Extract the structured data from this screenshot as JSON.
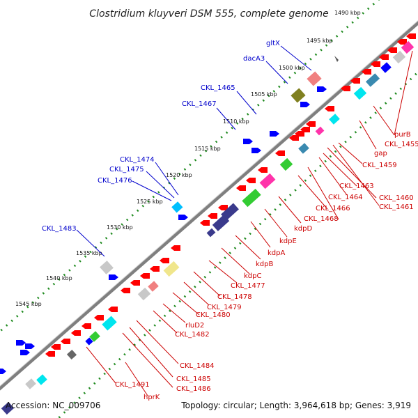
{
  "title": "Clostridium kluyveri DSM 555, complete genome",
  "footer": {
    "accession": "Accession: NC_009706",
    "summary": "Topology: circular; Length: 3,964,618 bp; Genes: 3,919"
  },
  "ticks": [
    {
      "label": "1490 kbp"
    },
    {
      "label": "1495 kbp"
    },
    {
      "label": "1500 kbp"
    },
    {
      "label": "1505 kbp"
    },
    {
      "label": "1510 kbp"
    },
    {
      "label": "1515 kbp"
    },
    {
      "label": "1520 kbp"
    },
    {
      "label": "1525 kbp"
    },
    {
      "label": "1530 kbp"
    },
    {
      "label": "1535 kbp"
    },
    {
      "label": "1540 kbp"
    },
    {
      "label": "1545 kbp"
    }
  ],
  "outer_labels": [
    {
      "label": "gltX"
    },
    {
      "label": "dacA3"
    },
    {
      "label": "CKL_1465"
    },
    {
      "label": "CKL_1467"
    },
    {
      "label": "CKL_1474"
    },
    {
      "label": "CKL_1475"
    },
    {
      "label": "CKL_1476"
    },
    {
      "label": "CKL_1483"
    }
  ],
  "inner_labels": [
    {
      "label": "purB"
    },
    {
      "label": "CKL_1455"
    },
    {
      "label": "gap"
    },
    {
      "label": "CKL_1459"
    },
    {
      "label": "CKL_1463"
    },
    {
      "label": "CKL_1460"
    },
    {
      "label": "CKL_1464"
    },
    {
      "label": "CKL_1461"
    },
    {
      "label": "CKL_1466"
    },
    {
      "label": "CKL_1468"
    },
    {
      "label": "kdpD"
    },
    {
      "label": "kdpE"
    },
    {
      "label": "kdpA"
    },
    {
      "label": "kdpB"
    },
    {
      "label": "kdpC"
    },
    {
      "label": "CKL_1477"
    },
    {
      "label": "CKL_1478"
    },
    {
      "label": "CKL_1479"
    },
    {
      "label": "CKL_1480"
    },
    {
      "label": "rluD2"
    },
    {
      "label": "CKL_1482"
    },
    {
      "label": "CKL_1484"
    },
    {
      "label": "CKL_1485"
    },
    {
      "label": "CKL_1486"
    },
    {
      "label": "CKL_1491"
    },
    {
      "label": "hprK"
    }
  ],
  "colors": {
    "backbone": "#7f7f7f",
    "tick_dots": "#1e8a1e",
    "forward_label": "#0000cc",
    "reverse_label": "#cc0000",
    "cds_forward": "#0000ff",
    "cds_reverse": "#ff0000",
    "cog_cyan": "#00e5ee",
    "cog_green": "#33cc33",
    "cog_magenta": "#ff33aa",
    "cog_navy": "#3a3a8c",
    "cog_olive": "#808020",
    "cog_grey": "#bfbfbf",
    "cog_pink": "#f08080",
    "cog_yellow": "#f0e68c",
    "cog_teal": "#3a8ab0"
  }
}
